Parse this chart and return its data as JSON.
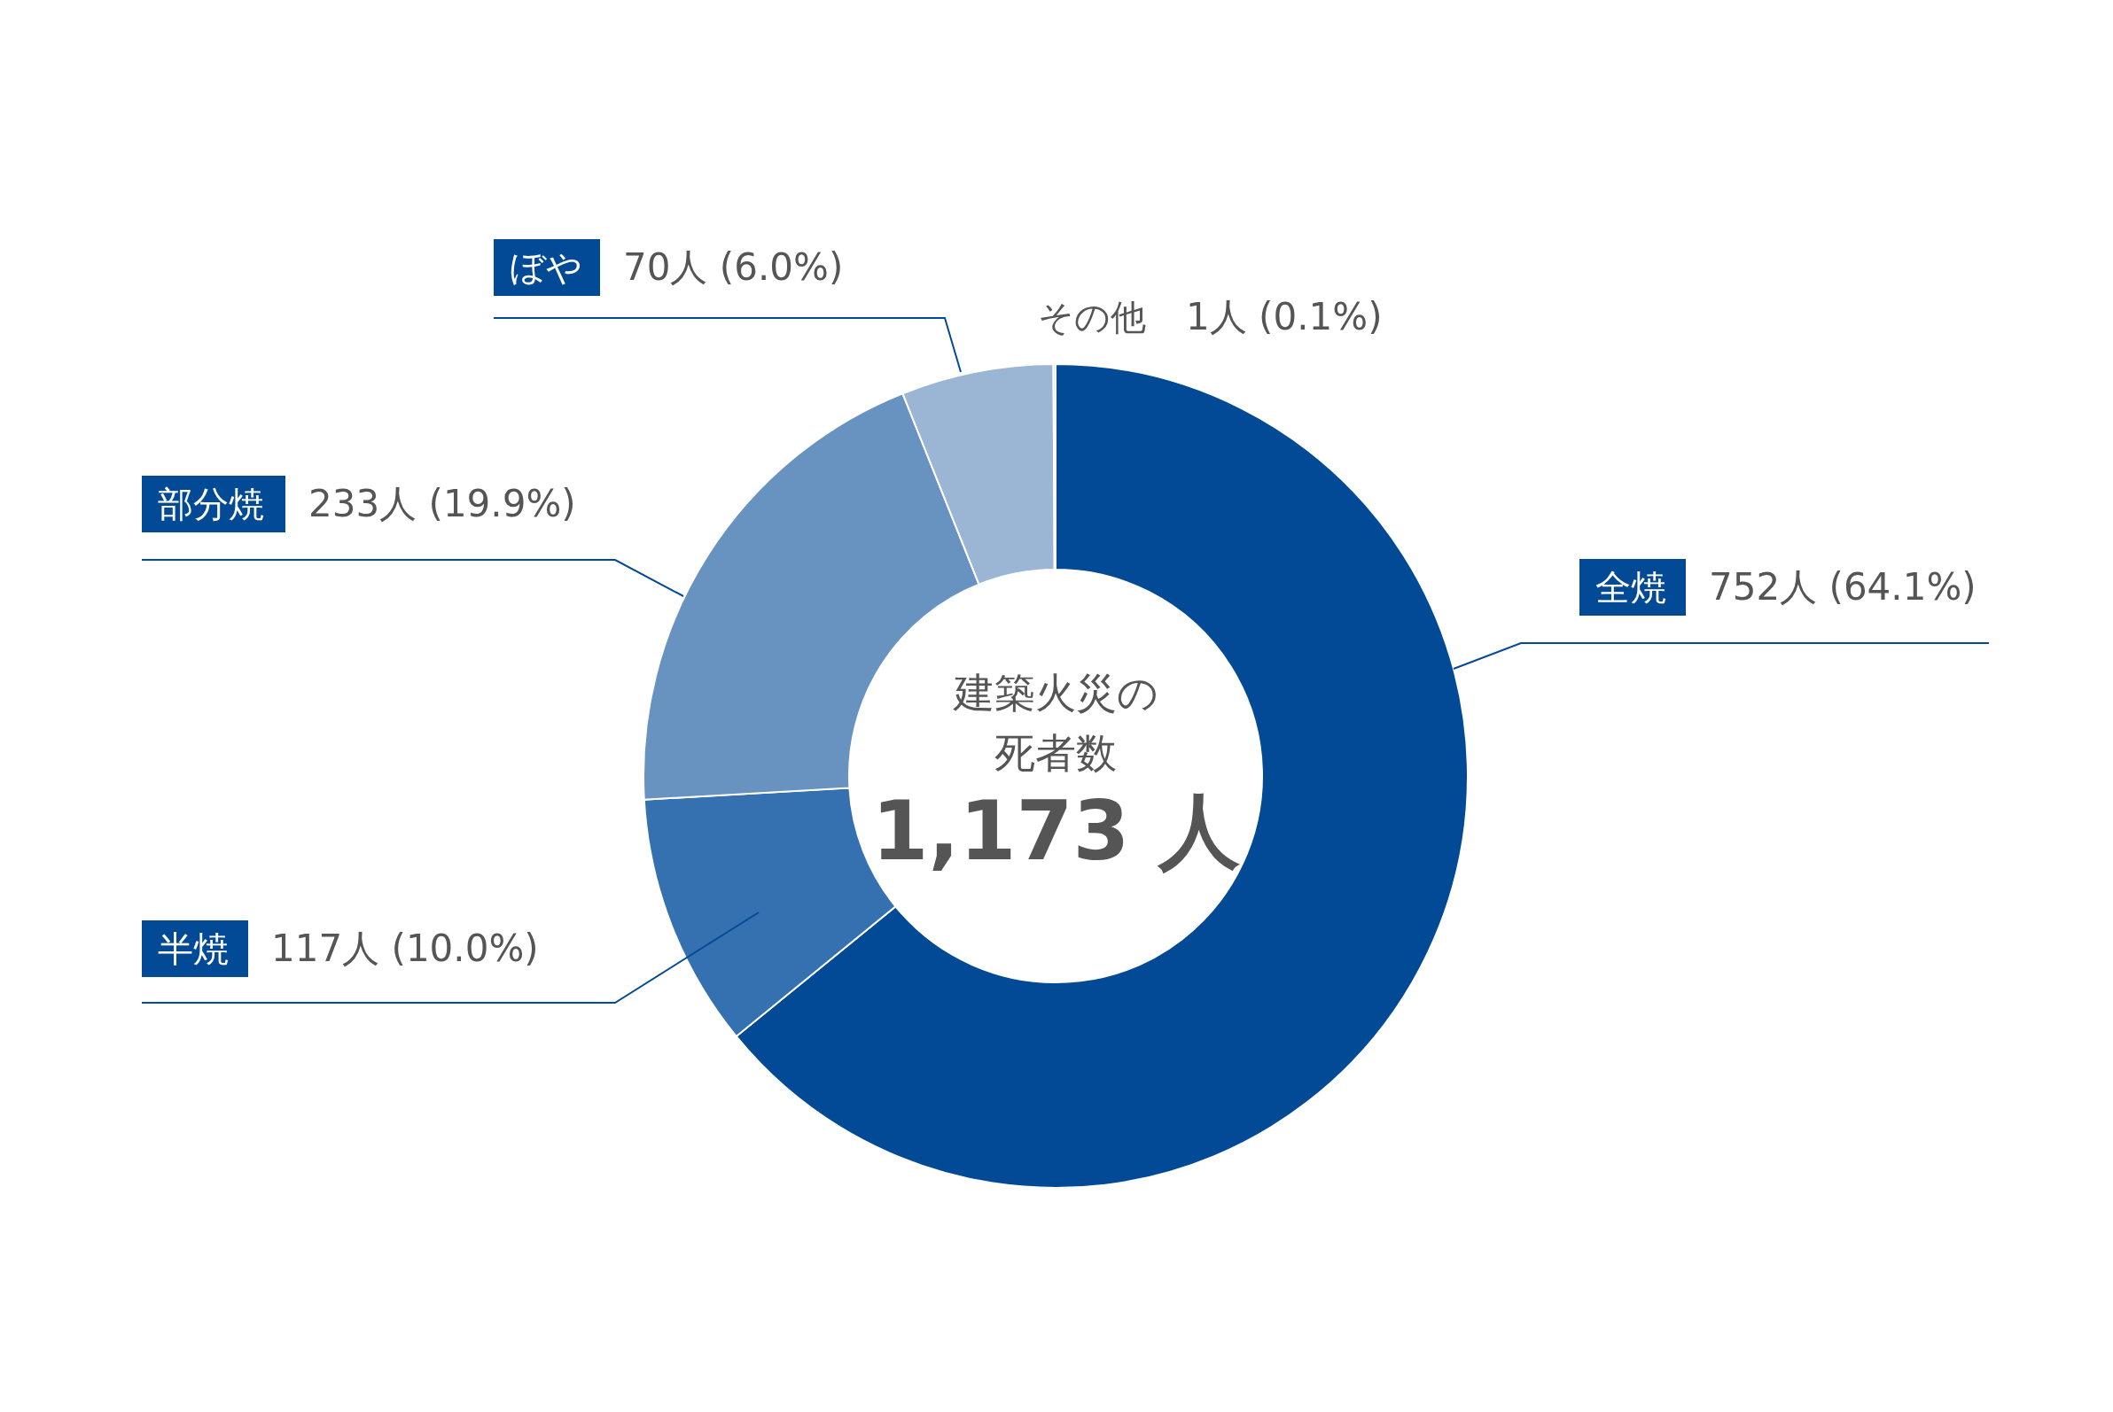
{
  "chart_data": {
    "type": "donut",
    "categories": [
      "全焼",
      "半焼",
      "部分焼",
      "ぼや",
      "その他"
    ],
    "values": [
      752,
      117,
      233,
      70,
      1
    ],
    "colors": [
      "#034a96",
      "#3570b0",
      "#6893c0",
      "#9ab6d4",
      "#c9d7e8"
    ],
    "value_labels": [
      "752人 (64.1%)",
      "117人 (10.0%)",
      "233人 (19.9%)",
      "70人 (6.0%)",
      "1人 (0.1%)"
    ],
    "annotations": [
      "建築火災の",
      "死者数",
      "1,173 人"
    ]
  }
}
